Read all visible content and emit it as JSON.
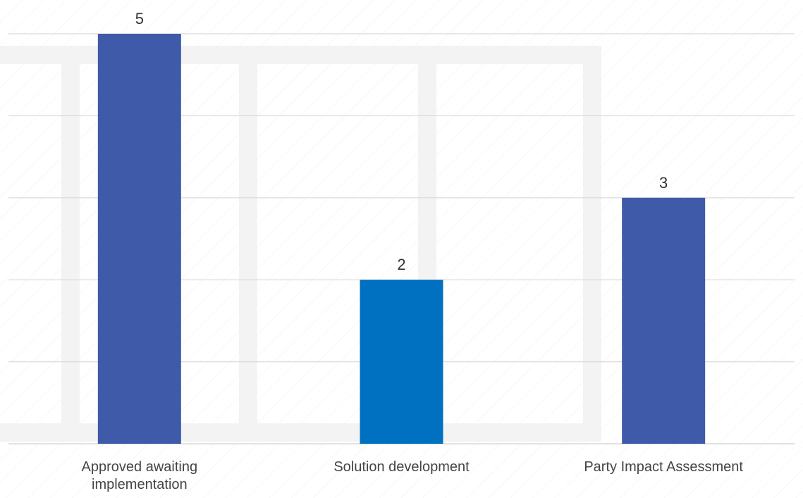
{
  "chart_data": {
    "type": "bar",
    "categories": [
      [
        "Approved awaiting",
        "implementation"
      ],
      [
        "Solution development"
      ],
      [
        "Party Impact Assessment"
      ]
    ],
    "values": [
      5,
      2,
      3
    ],
    "data_labels": [
      "5",
      "2",
      "3"
    ],
    "bar_colors": [
      "#3F5AA8",
      "#0070C0",
      "#3F5AA8"
    ],
    "ylim": [
      0,
      5
    ],
    "ytick_step": 1,
    "grid": true,
    "legend": "none",
    "gridline_color": "#D9D9D9",
    "label_color": "#404040"
  }
}
